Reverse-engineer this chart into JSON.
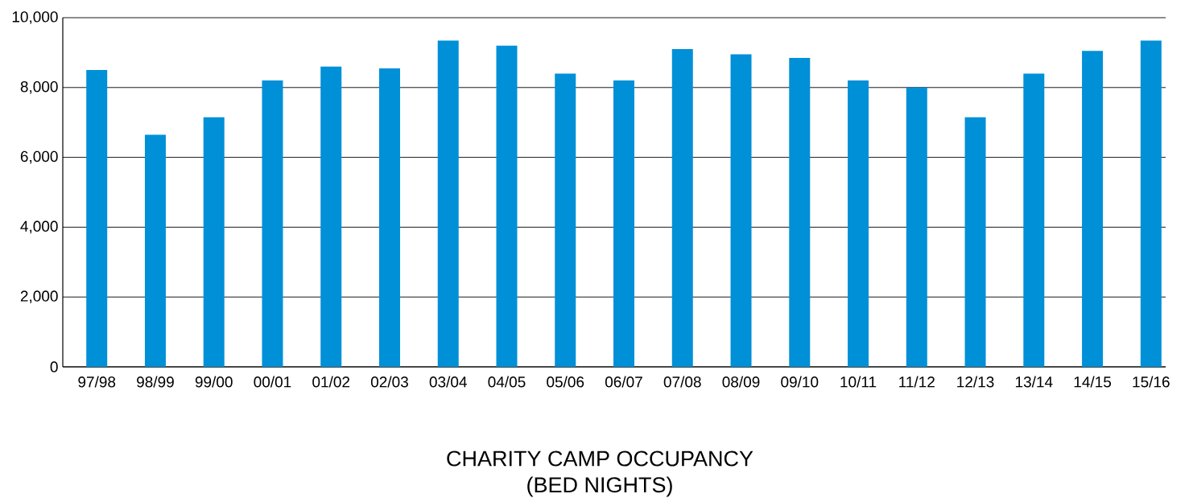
{
  "chart_data": {
    "type": "bar",
    "title": "CHARITY CAMP OCCUPANCY",
    "subtitle": "(BED NIGHTS)",
    "categories": [
      "97/98",
      "98/99",
      "99/00",
      "00/01",
      "01/02",
      "02/03",
      "03/04",
      "04/05",
      "05/06",
      "06/07",
      "07/08",
      "08/09",
      "09/10",
      "10/11",
      "11/12",
      "12/13",
      "13/14",
      "14/15",
      "15/16"
    ],
    "values": [
      8500,
      6650,
      7150,
      8200,
      8600,
      8550,
      9350,
      9200,
      8400,
      8200,
      9100,
      8950,
      8850,
      8200,
      8000,
      7150,
      8400,
      9050,
      9350
    ],
    "color": "#0090d7",
    "ylim": [
      0,
      10000
    ],
    "yticks": [
      {
        "value": 0,
        "label": "0"
      },
      {
        "value": 2000,
        "label": "2,000"
      },
      {
        "value": 4000,
        "label": "4,000"
      },
      {
        "value": 6000,
        "label": "6,000"
      },
      {
        "value": 8000,
        "label": "8,000"
      },
      {
        "value": 10000,
        "label": "10,000"
      }
    ],
    "grid": "y"
  }
}
